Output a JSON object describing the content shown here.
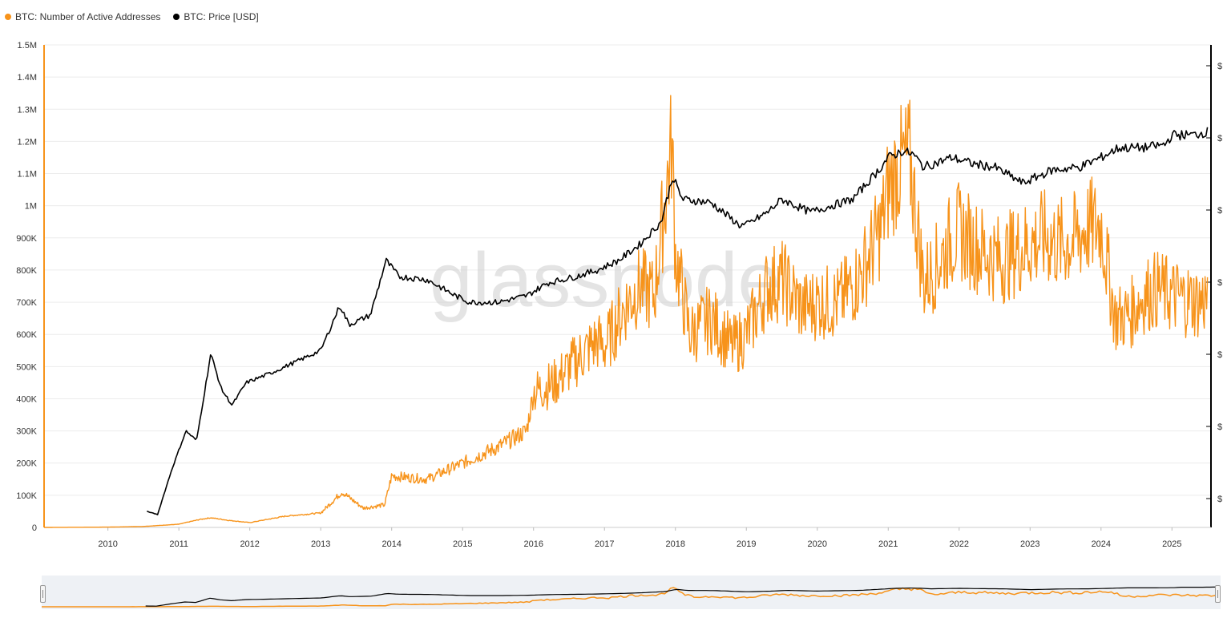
{
  "legend": [
    {
      "label": "BTC: Number of Active Addresses",
      "color": "#f7931a"
    },
    {
      "label": "BTC: Price [USD]",
      "color": "#000000"
    }
  ],
  "watermark": "glassnode",
  "chart_data": {
    "type": "line",
    "title": "",
    "x_ticks": [
      "2010",
      "2011",
      "2012",
      "2013",
      "2014",
      "2015",
      "2016",
      "2017",
      "2018",
      "2019",
      "2020",
      "2021",
      "2022",
      "2023",
      "2024",
      "2025"
    ],
    "y_ticks": [
      "0",
      "100K",
      "200K",
      "300K",
      "400K",
      "500K",
      "600K",
      "700K",
      "800K",
      "900K",
      "1M",
      "1.1M",
      "1.2M",
      "1.3M",
      "1.4M",
      "1.5M"
    ],
    "ylim": [
      0,
      1500000
    ],
    "xlim": [
      2009.1,
      2025.55
    ],
    "right_axis_labels": [
      "$",
      "$",
      "$",
      "$",
      "$",
      "$",
      "$"
    ],
    "series": [
      {
        "name": "BTC: Number of Active Addresses",
        "color": "#f7931a",
        "axis": "left",
        "x": [
          2009.1,
          2010.0,
          2010.5,
          2011.0,
          2011.3,
          2011.45,
          2011.7,
          2012.0,
          2012.5,
          2013.0,
          2013.3,
          2013.6,
          2013.9,
          2014.0,
          2014.5,
          2015.0,
          2015.5,
          2015.9,
          2016.0,
          2016.3,
          2016.6,
          2016.9,
          2017.0,
          2017.3,
          2017.5,
          2017.7,
          2017.95,
          2018.0,
          2018.2,
          2018.5,
          2018.8,
          2019.0,
          2019.3,
          2019.5,
          2019.8,
          2020.0,
          2020.3,
          2020.6,
          2020.9,
          2021.0,
          2021.15,
          2021.3,
          2021.5,
          2021.7,
          2021.9,
          2022.0,
          2022.2,
          2022.4,
          2022.6,
          2022.8,
          2023.0,
          2023.2,
          2023.4,
          2023.6,
          2023.8,
          2024.0,
          2024.2,
          2024.4,
          2024.6,
          2024.8,
          2025.0,
          2025.2,
          2025.4,
          2025.5
        ],
        "values": [
          0,
          1000,
          3000,
          10000,
          25000,
          30000,
          22000,
          15000,
          35000,
          45000,
          110000,
          60000,
          70000,
          160000,
          150000,
          200000,
          250000,
          300000,
          420000,
          450000,
          520000,
          580000,
          560000,
          690000,
          750000,
          720000,
          1200000,
          850000,
          600000,
          650000,
          560000,
          600000,
          750000,
          770000,
          680000,
          700000,
          700000,
          780000,
          930000,
          1050000,
          1120000,
          1150000,
          760000,
          820000,
          900000,
          920000,
          880000,
          850000,
          830000,
          860000,
          880000,
          900000,
          880000,
          890000,
          930000,
          940000,
          650000,
          660000,
          720000,
          740000,
          720000,
          710000,
          700000,
          720000
        ]
      },
      {
        "name": "BTC: Price [USD]",
        "color": "#000000",
        "axis": "right (log scale)",
        "x": [
          2010.55,
          2010.7,
          2010.9,
          2011.1,
          2011.25,
          2011.45,
          2011.6,
          2011.75,
          2011.95,
          2012.3,
          2012.7,
          2013.0,
          2013.27,
          2013.4,
          2013.7,
          2013.92,
          2014.1,
          2014.5,
          2014.9,
          2015.1,
          2015.5,
          2015.9,
          2016.2,
          2016.6,
          2016.9,
          2017.2,
          2017.5,
          2017.8,
          2017.96,
          2018.1,
          2018.5,
          2018.9,
          2019.0,
          2019.3,
          2019.5,
          2019.9,
          2020.2,
          2020.5,
          2020.9,
          2021.0,
          2021.2,
          2021.35,
          2021.5,
          2021.9,
          2022.2,
          2022.5,
          2022.9,
          2023.1,
          2023.3,
          2023.7,
          2024.0,
          2024.25,
          2024.6,
          2024.9,
          2025.0,
          2025.3,
          2025.5
        ],
        "plot_level": [
          0.05,
          0.04,
          0.18,
          0.3,
          0.27,
          0.54,
          0.43,
          0.38,
          0.45,
          0.48,
          0.52,
          0.55,
          0.69,
          0.63,
          0.66,
          0.83,
          0.78,
          0.77,
          0.72,
          0.7,
          0.7,
          0.72,
          0.76,
          0.78,
          0.8,
          0.83,
          0.88,
          0.95,
          1.09,
          1.02,
          1.01,
          0.94,
          0.94,
          0.98,
          1.02,
          0.98,
          1.0,
          1.02,
          1.12,
          1.15,
          1.17,
          1.16,
          1.12,
          1.15,
          1.13,
          1.12,
          1.07,
          1.09,
          1.11,
          1.12,
          1.15,
          1.18,
          1.18,
          1.19,
          1.22,
          1.22,
          1.23
        ]
      }
    ],
    "annotation": "Price series plotted on a right-hand log axis whose tick values are cropped; plot_level is the relative height on the left-axis scale (0–1.5M units / 1M)."
  }
}
